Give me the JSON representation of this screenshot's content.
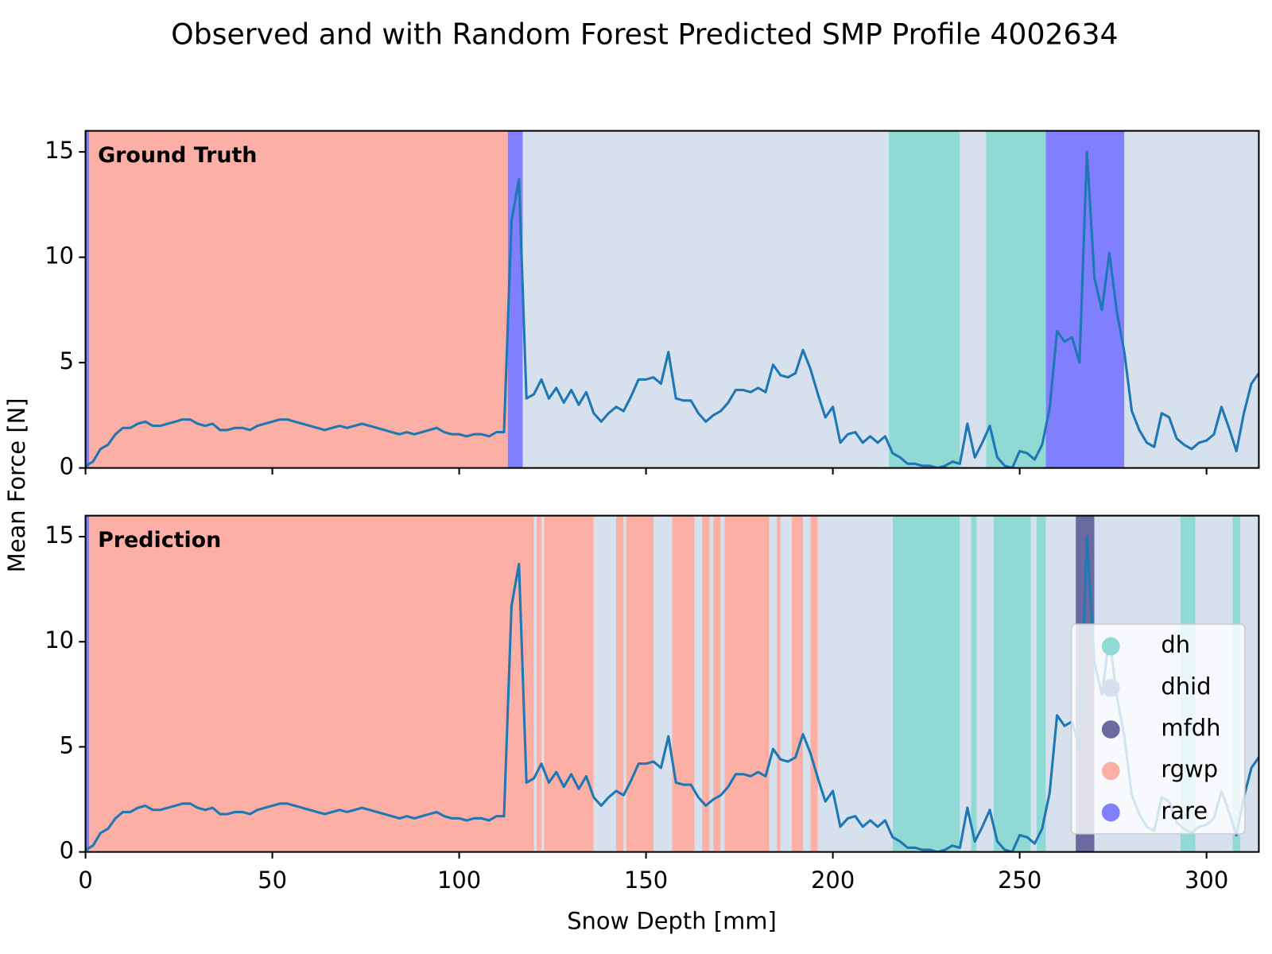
{
  "title": "Observed and with Random Forest Predicted SMP Profile 4002634",
  "xlabel": "Snow Depth [mm]",
  "ylabel": "Mean Force [N]",
  "chart_data": [
    {
      "type": "line",
      "annotation": "Ground Truth",
      "color": "#1f77b4",
      "xlim": [
        0,
        314
      ],
      "xticks": [
        0,
        50,
        100,
        150,
        200,
        250,
        300
      ],
      "ylim": [
        0,
        16
      ],
      "yticks": [
        0,
        5,
        10,
        15
      ],
      "x": [
        0,
        2,
        4,
        6,
        8,
        10,
        12,
        14,
        16,
        18,
        20,
        22,
        24,
        26,
        28,
        30,
        32,
        34,
        36,
        38,
        40,
        42,
        44,
        46,
        48,
        50,
        52,
        54,
        56,
        58,
        60,
        62,
        64,
        66,
        68,
        70,
        72,
        74,
        76,
        78,
        80,
        82,
        84,
        86,
        88,
        90,
        92,
        94,
        96,
        98,
        100,
        102,
        104,
        106,
        108,
        110,
        112,
        114,
        116,
        118,
        120,
        122,
        124,
        126,
        128,
        130,
        132,
        134,
        136,
        138,
        140,
        142,
        144,
        146,
        148,
        150,
        152,
        154,
        156,
        158,
        160,
        162,
        164,
        166,
        168,
        170,
        172,
        174,
        176,
        178,
        180,
        182,
        184,
        186,
        188,
        190,
        192,
        194,
        196,
        198,
        200,
        202,
        204,
        206,
        208,
        210,
        212,
        214,
        216,
        218,
        220,
        222,
        224,
        226,
        228,
        230,
        232,
        234,
        236,
        238,
        240,
        242,
        244,
        246,
        248,
        250,
        252,
        254,
        256,
        258,
        260,
        262,
        264,
        266,
        268,
        270,
        272,
        274,
        276,
        278,
        280,
        282,
        284,
        286,
        288,
        290,
        292,
        294,
        296,
        298,
        300,
        302,
        304,
        306,
        308,
        310,
        312,
        314
      ],
      "values": [
        0.1,
        0.3,
        0.9,
        1.1,
        1.6,
        1.9,
        1.9,
        2.1,
        2.2,
        2.0,
        2.0,
        2.1,
        2.2,
        2.3,
        2.3,
        2.1,
        2.0,
        2.1,
        1.8,
        1.8,
        1.9,
        1.9,
        1.8,
        2.0,
        2.1,
        2.2,
        2.3,
        2.3,
        2.2,
        2.1,
        2.0,
        1.9,
        1.8,
        1.9,
        2.0,
        1.9,
        2.0,
        2.1,
        2.0,
        1.9,
        1.8,
        1.7,
        1.6,
        1.7,
        1.6,
        1.7,
        1.8,
        1.9,
        1.7,
        1.6,
        1.6,
        1.5,
        1.6,
        1.6,
        1.5,
        1.7,
        1.7,
        11.7,
        13.7,
        3.3,
        3.5,
        4.2,
        3.3,
        3.8,
        3.1,
        3.7,
        3.0,
        3.6,
        2.6,
        2.2,
        2.6,
        2.9,
        2.7,
        3.4,
        4.2,
        4.2,
        4.3,
        4.0,
        5.5,
        3.3,
        3.2,
        3.2,
        2.6,
        2.2,
        2.5,
        2.7,
        3.1,
        3.7,
        3.7,
        3.6,
        3.8,
        3.6,
        4.9,
        4.4,
        4.3,
        4.5,
        5.6,
        4.7,
        3.5,
        2.4,
        2.9,
        1.2,
        1.6,
        1.7,
        1.2,
        1.5,
        1.2,
        1.5,
        0.7,
        0.5,
        0.2,
        0.2,
        0.1,
        0.1,
        0.0,
        0.1,
        0.3,
        0.2,
        2.1,
        0.5,
        1.2,
        2.0,
        0.5,
        0.1,
        0.0,
        0.8,
        0.7,
        0.4,
        1.1,
        2.8,
        6.5,
        6.0,
        6.2,
        5.0,
        15.0,
        9.0,
        7.5,
        10.2,
        7.4,
        5.5,
        2.7,
        1.8,
        1.2,
        1.0,
        2.6,
        2.4,
        1.4,
        1.1,
        0.9,
        1.2,
        1.3,
        1.6,
        2.9,
        1.9,
        0.8,
        2.6,
        4.0,
        4.5
      ],
      "spans": [
        {
          "start": 0,
          "end": 1,
          "color": "#8080ff"
        },
        {
          "start": 1,
          "end": 113,
          "color": "#fcb0a5"
        },
        {
          "start": 113,
          "end": 117,
          "color": "#8080ff"
        },
        {
          "start": 117,
          "end": 215,
          "color": "#d7e1ed"
        },
        {
          "start": 215,
          "end": 234,
          "color": "#90d9d4"
        },
        {
          "start": 234,
          "end": 241,
          "color": "#d7e1ed"
        },
        {
          "start": 241,
          "end": 257,
          "color": "#90d9d4"
        },
        {
          "start": 257,
          "end": 278,
          "color": "#8080ff"
        },
        {
          "start": 278,
          "end": 314,
          "color": "#d7e1ed"
        }
      ]
    },
    {
      "type": "line",
      "annotation": "Prediction",
      "color": "#1f77b4",
      "xlim": [
        0,
        314
      ],
      "xticks": [
        0,
        50,
        100,
        150,
        200,
        250,
        300
      ],
      "ylim": [
        0,
        16
      ],
      "yticks": [
        0,
        5,
        10,
        15
      ],
      "x": [
        0,
        2,
        4,
        6,
        8,
        10,
        12,
        14,
        16,
        18,
        20,
        22,
        24,
        26,
        28,
        30,
        32,
        34,
        36,
        38,
        40,
        42,
        44,
        46,
        48,
        50,
        52,
        54,
        56,
        58,
        60,
        62,
        64,
        66,
        68,
        70,
        72,
        74,
        76,
        78,
        80,
        82,
        84,
        86,
        88,
        90,
        92,
        94,
        96,
        98,
        100,
        102,
        104,
        106,
        108,
        110,
        112,
        114,
        116,
        118,
        120,
        122,
        124,
        126,
        128,
        130,
        132,
        134,
        136,
        138,
        140,
        142,
        144,
        146,
        148,
        150,
        152,
        154,
        156,
        158,
        160,
        162,
        164,
        166,
        168,
        170,
        172,
        174,
        176,
        178,
        180,
        182,
        184,
        186,
        188,
        190,
        192,
        194,
        196,
        198,
        200,
        202,
        204,
        206,
        208,
        210,
        212,
        214,
        216,
        218,
        220,
        222,
        224,
        226,
        228,
        230,
        232,
        234,
        236,
        238,
        240,
        242,
        244,
        246,
        248,
        250,
        252,
        254,
        256,
        258,
        260,
        262,
        264,
        266,
        268,
        270,
        272,
        274,
        276,
        278,
        280,
        282,
        284,
        286,
        288,
        290,
        292,
        294,
        296,
        298,
        300,
        302,
        304,
        306,
        308,
        310,
        312,
        314
      ],
      "values": [
        0.1,
        0.3,
        0.9,
        1.1,
        1.6,
        1.9,
        1.9,
        2.1,
        2.2,
        2.0,
        2.0,
        2.1,
        2.2,
        2.3,
        2.3,
        2.1,
        2.0,
        2.1,
        1.8,
        1.8,
        1.9,
        1.9,
        1.8,
        2.0,
        2.1,
        2.2,
        2.3,
        2.3,
        2.2,
        2.1,
        2.0,
        1.9,
        1.8,
        1.9,
        2.0,
        1.9,
        2.0,
        2.1,
        2.0,
        1.9,
        1.8,
        1.7,
        1.6,
        1.7,
        1.6,
        1.7,
        1.8,
        1.9,
        1.7,
        1.6,
        1.6,
        1.5,
        1.6,
        1.6,
        1.5,
        1.7,
        1.7,
        11.7,
        13.7,
        3.3,
        3.5,
        4.2,
        3.3,
        3.8,
        3.1,
        3.7,
        3.0,
        3.6,
        2.6,
        2.2,
        2.6,
        2.9,
        2.7,
        3.4,
        4.2,
        4.2,
        4.3,
        4.0,
        5.5,
        3.3,
        3.2,
        3.2,
        2.6,
        2.2,
        2.5,
        2.7,
        3.1,
        3.7,
        3.7,
        3.6,
        3.8,
        3.6,
        4.9,
        4.4,
        4.3,
        4.5,
        5.6,
        4.7,
        3.5,
        2.4,
        2.9,
        1.2,
        1.6,
        1.7,
        1.2,
        1.5,
        1.2,
        1.5,
        0.7,
        0.5,
        0.2,
        0.2,
        0.1,
        0.1,
        0.0,
        0.1,
        0.3,
        0.2,
        2.1,
        0.5,
        1.2,
        2.0,
        0.5,
        0.1,
        0.0,
        0.8,
        0.7,
        0.4,
        1.1,
        2.8,
        6.5,
        6.0,
        6.2,
        5.0,
        15.0,
        9.0,
        7.5,
        10.2,
        7.4,
        5.5,
        2.7,
        1.8,
        1.2,
        1.0,
        2.6,
        2.4,
        1.4,
        1.1,
        0.9,
        1.2,
        1.3,
        1.6,
        2.9,
        1.9,
        0.8,
        2.6,
        4.0,
        4.5
      ],
      "spans": [
        {
          "start": 0,
          "end": 1,
          "color": "#8080ff"
        },
        {
          "start": 1,
          "end": 120,
          "color": "#fcb0a5"
        },
        {
          "start": 120,
          "end": 120.7,
          "color": "#d7e1ed"
        },
        {
          "start": 120.7,
          "end": 122,
          "color": "#fcb0a5"
        },
        {
          "start": 122,
          "end": 122.7,
          "color": "#d7e1ed"
        },
        {
          "start": 122.7,
          "end": 136,
          "color": "#fcb0a5"
        },
        {
          "start": 136,
          "end": 142,
          "color": "#d7e1ed"
        },
        {
          "start": 142,
          "end": 144,
          "color": "#fcb0a5"
        },
        {
          "start": 144,
          "end": 144.7,
          "color": "#d7e1ed"
        },
        {
          "start": 144.7,
          "end": 152,
          "color": "#fcb0a5"
        },
        {
          "start": 152,
          "end": 157,
          "color": "#d7e1ed"
        },
        {
          "start": 157,
          "end": 163,
          "color": "#fcb0a5"
        },
        {
          "start": 163,
          "end": 165,
          "color": "#d7e1ed"
        },
        {
          "start": 165,
          "end": 167,
          "color": "#fcb0a5"
        },
        {
          "start": 167,
          "end": 168,
          "color": "#d7e1ed"
        },
        {
          "start": 168,
          "end": 170,
          "color": "#fcb0a5"
        },
        {
          "start": 170,
          "end": 171,
          "color": "#d7e1ed"
        },
        {
          "start": 171,
          "end": 183,
          "color": "#fcb0a5"
        },
        {
          "start": 183,
          "end": 185,
          "color": "#d7e1ed"
        },
        {
          "start": 185,
          "end": 186,
          "color": "#fcb0a5"
        },
        {
          "start": 186,
          "end": 189,
          "color": "#d7e1ed"
        },
        {
          "start": 189,
          "end": 192,
          "color": "#fcb0a5"
        },
        {
          "start": 192,
          "end": 194,
          "color": "#d7e1ed"
        },
        {
          "start": 194,
          "end": 196,
          "color": "#fcb0a5"
        },
        {
          "start": 196,
          "end": 216,
          "color": "#d7e1ed"
        },
        {
          "start": 216,
          "end": 234,
          "color": "#90d9d4"
        },
        {
          "start": 234,
          "end": 237,
          "color": "#d7e1ed"
        },
        {
          "start": 237,
          "end": 238.5,
          "color": "#90d9d4"
        },
        {
          "start": 238.5,
          "end": 243,
          "color": "#d7e1ed"
        },
        {
          "start": 243,
          "end": 253,
          "color": "#90d9d4"
        },
        {
          "start": 253,
          "end": 254.5,
          "color": "#d7e1ed"
        },
        {
          "start": 254.5,
          "end": 257,
          "color": "#90d9d4"
        },
        {
          "start": 257,
          "end": 265,
          "color": "#d7e1ed"
        },
        {
          "start": 265,
          "end": 270,
          "color": "#6a6aa0"
        },
        {
          "start": 270,
          "end": 293,
          "color": "#d7e1ed"
        },
        {
          "start": 293,
          "end": 297,
          "color": "#90d9d4"
        },
        {
          "start": 297,
          "end": 307,
          "color": "#d7e1ed"
        },
        {
          "start": 307,
          "end": 309,
          "color": "#90d9d4"
        },
        {
          "start": 309,
          "end": 314,
          "color": "#d7e1ed"
        }
      ],
      "legend_loc": "lower right",
      "legend": [
        {
          "name": "dh",
          "color": "#90d9d4"
        },
        {
          "name": "dhid",
          "color": "#d7e1ed"
        },
        {
          "name": "mfdh",
          "color": "#6a6aa0"
        },
        {
          "name": "rgwp",
          "color": "#fcb0a5"
        },
        {
          "name": "rare",
          "color": "#8080ff"
        }
      ]
    }
  ]
}
